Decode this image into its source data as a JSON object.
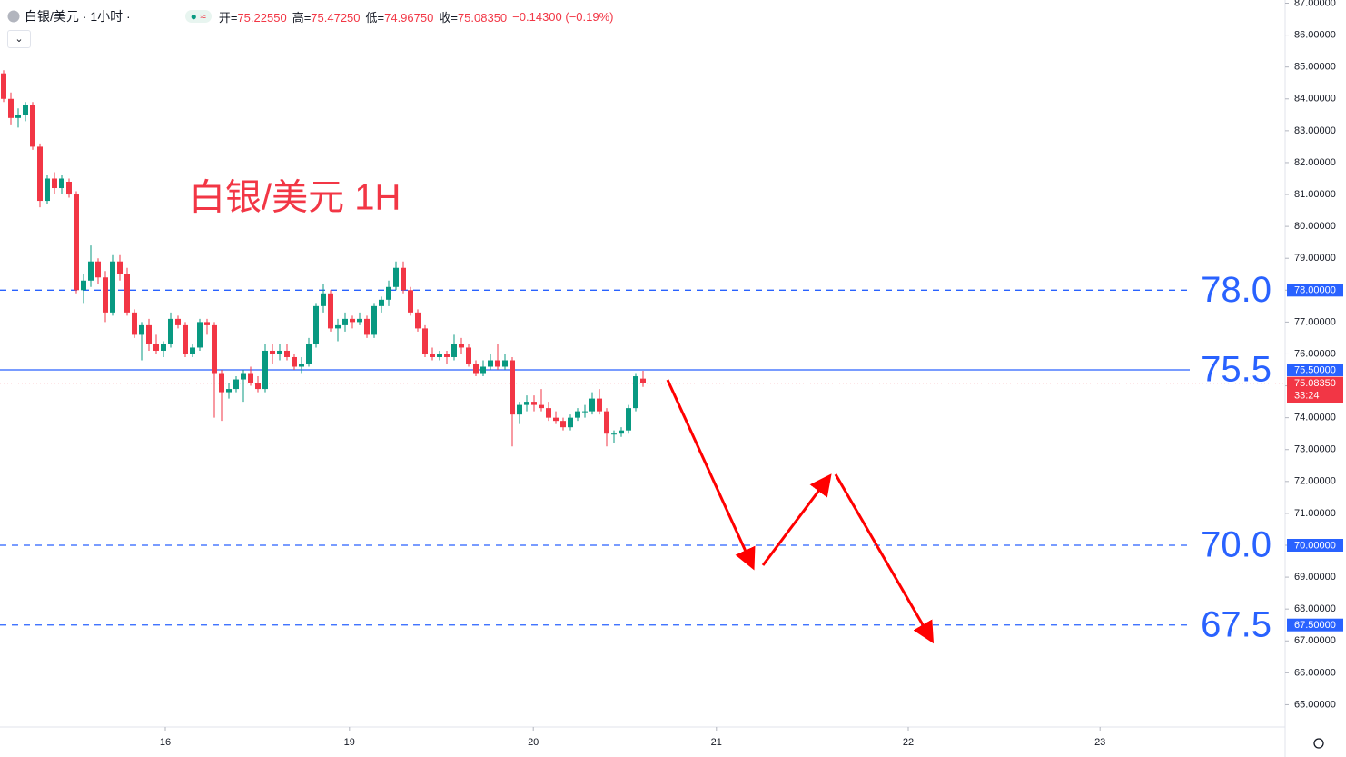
{
  "chart_data": {
    "type": "candlestick",
    "symbol": "白银/美元 · 1小时 ·",
    "ohlc_header": [
      {
        "label": "开=",
        "value": "75.22550"
      },
      {
        "label": "高=",
        "value": "75.47250"
      },
      {
        "label": "低=",
        "value": "74.96750"
      },
      {
        "label": "收=",
        "value": "75.08350"
      }
    ],
    "change": "−0.14300 (−0.19%)",
    "title": "白银/美元 1H",
    "up_color": "#089981",
    "down_color": "#f23645",
    "level_color": "#2962ff",
    "candles": [
      [
        84.8,
        84.9,
        83.9,
        84.0
      ],
      [
        84.0,
        84.2,
        83.2,
        83.4
      ],
      [
        83.4,
        83.7,
        83.1,
        83.5
      ],
      [
        83.5,
        83.9,
        83.3,
        83.8
      ],
      [
        83.8,
        83.9,
        82.4,
        82.5
      ],
      [
        82.5,
        82.6,
        80.6,
        80.8
      ],
      [
        80.8,
        81.6,
        80.7,
        81.5
      ],
      [
        81.5,
        81.7,
        81.0,
        81.2
      ],
      [
        81.2,
        81.6,
        81.0,
        81.5
      ],
      [
        81.4,
        81.5,
        80.9,
        81.0
      ],
      [
        81.0,
        81.1,
        77.9,
        78.0
      ],
      [
        78.0,
        78.5,
        77.6,
        78.3
      ],
      [
        78.3,
        79.4,
        78.1,
        78.9
      ],
      [
        78.9,
        79.0,
        78.2,
        78.4
      ],
      [
        78.4,
        78.6,
        77.0,
        77.3
      ],
      [
        77.3,
        79.1,
        77.2,
        78.9
      ],
      [
        78.9,
        79.1,
        78.3,
        78.5
      ],
      [
        78.5,
        78.7,
        77.2,
        77.3
      ],
      [
        77.3,
        77.4,
        76.5,
        76.6
      ],
      [
        76.6,
        77.0,
        75.8,
        76.9
      ],
      [
        76.9,
        77.1,
        76.1,
        76.3
      ],
      [
        76.3,
        76.6,
        76.0,
        76.1
      ],
      [
        76.1,
        76.4,
        75.9,
        76.3
      ],
      [
        76.3,
        77.3,
        76.2,
        77.1
      ],
      [
        77.1,
        77.2,
        76.8,
        76.9
      ],
      [
        76.9,
        77.0,
        75.9,
        76.0
      ],
      [
        76.0,
        76.3,
        75.9,
        76.2
      ],
      [
        76.2,
        77.1,
        76.1,
        77.0
      ],
      [
        77.0,
        77.1,
        76.6,
        76.9
      ],
      [
        76.9,
        77.0,
        74.0,
        75.4
      ],
      [
        75.4,
        75.5,
        73.9,
        74.8
      ],
      [
        74.8,
        75.1,
        74.6,
        74.9
      ],
      [
        74.9,
        75.3,
        74.8,
        75.2
      ],
      [
        75.2,
        75.5,
        74.5,
        75.4
      ],
      [
        75.4,
        75.6,
        75.0,
        75.1
      ],
      [
        75.1,
        75.3,
        74.8,
        74.9
      ],
      [
        74.9,
        76.3,
        74.8,
        76.1
      ],
      [
        76.1,
        76.3,
        75.7,
        76.0
      ],
      [
        76.0,
        76.3,
        75.8,
        76.1
      ],
      [
        76.1,
        76.3,
        75.8,
        75.9
      ],
      [
        75.9,
        76.0,
        75.5,
        75.6
      ],
      [
        75.6,
        75.9,
        75.4,
        75.7
      ],
      [
        75.7,
        76.5,
        75.6,
        76.3
      ],
      [
        76.3,
        77.6,
        76.2,
        77.5
      ],
      [
        77.5,
        78.2,
        77.3,
        77.9
      ],
      [
        77.9,
        78.0,
        76.7,
        76.8
      ],
      [
        76.8,
        77.1,
        76.4,
        76.9
      ],
      [
        76.9,
        77.3,
        76.7,
        77.1
      ],
      [
        77.1,
        77.2,
        76.8,
        77.0
      ],
      [
        77.0,
        77.3,
        76.9,
        77.1
      ],
      [
        77.1,
        77.2,
        76.5,
        76.6
      ],
      [
        76.6,
        77.6,
        76.5,
        77.5
      ],
      [
        77.5,
        77.8,
        77.3,
        77.7
      ],
      [
        77.7,
        78.3,
        77.5,
        78.1
      ],
      [
        78.1,
        78.9,
        78.0,
        78.7
      ],
      [
        78.7,
        78.9,
        77.9,
        78.0
      ],
      [
        78.0,
        78.1,
        77.2,
        77.3
      ],
      [
        77.3,
        77.4,
        76.7,
        76.8
      ],
      [
        76.8,
        76.9,
        75.9,
        76.0
      ],
      [
        76.0,
        76.2,
        75.8,
        75.9
      ],
      [
        75.9,
        76.1,
        75.8,
        76.0
      ],
      [
        76.0,
        76.1,
        75.7,
        75.9
      ],
      [
        75.9,
        76.6,
        75.8,
        76.3
      ],
      [
        76.3,
        76.5,
        76.0,
        76.2
      ],
      [
        76.2,
        76.3,
        75.6,
        75.7
      ],
      [
        75.7,
        75.8,
        75.3,
        75.4
      ],
      [
        75.4,
        75.8,
        75.3,
        75.6
      ],
      [
        75.6,
        76.0,
        75.5,
        75.8
      ],
      [
        75.8,
        76.3,
        75.5,
        75.6
      ],
      [
        75.6,
        76.0,
        75.5,
        75.8
      ],
      [
        75.8,
        75.9,
        73.1,
        74.1
      ],
      [
        74.1,
        74.5,
        73.8,
        74.4
      ],
      [
        74.4,
        74.7,
        74.2,
        74.5
      ],
      [
        74.5,
        74.7,
        74.2,
        74.4
      ],
      [
        74.4,
        74.9,
        74.2,
        74.3
      ],
      [
        74.3,
        74.5,
        73.9,
        74.0
      ],
      [
        74.0,
        74.2,
        73.8,
        73.9
      ],
      [
        73.9,
        74.0,
        73.6,
        73.7
      ],
      [
        73.7,
        74.1,
        73.6,
        74.0
      ],
      [
        74.0,
        74.3,
        73.9,
        74.2
      ],
      [
        74.2,
        74.4,
        74.0,
        74.2
      ],
      [
        74.2,
        74.8,
        74.1,
        74.6
      ],
      [
        74.6,
        74.9,
        74.1,
        74.2
      ],
      [
        74.2,
        74.3,
        73.1,
        73.5
      ],
      [
        73.5,
        73.6,
        73.2,
        73.5
      ],
      [
        73.5,
        73.7,
        73.4,
        73.6
      ],
      [
        73.6,
        74.4,
        73.5,
        74.3
      ],
      [
        74.3,
        75.4,
        74.2,
        75.3
      ],
      [
        75.2255,
        75.4725,
        74.9675,
        75.0835
      ]
    ],
    "xlim": [
      -0.5,
      163.25
    ],
    "xticks": [
      {
        "value": 22.25,
        "label": "16"
      },
      {
        "value": 47.6,
        "label": "19"
      },
      {
        "value": 72.9,
        "label": "20"
      },
      {
        "value": 98.1,
        "label": "21"
      },
      {
        "value": 124.5,
        "label": "22"
      },
      {
        "value": 150.9,
        "label": "23"
      }
    ],
    "ylim": [
      64.3,
      87.1
    ],
    "yticks": [
      {
        "value": 65,
        "label": "65.00000"
      },
      {
        "value": 66,
        "label": "66.00000"
      },
      {
        "value": 67,
        "label": "67.00000"
      },
      {
        "value": 68,
        "label": "68.00000"
      },
      {
        "value": 69,
        "label": "69.00000"
      },
      {
        "value": 70,
        "label": "70.00000"
      },
      {
        "value": 71,
        "label": "71.00000"
      },
      {
        "value": 72,
        "label": "72.00000"
      },
      {
        "value": 73,
        "label": "73.00000"
      },
      {
        "value": 74,
        "label": "74.00000"
      },
      {
        "value": 75,
        "label": "75.00000"
      },
      {
        "value": 76,
        "label": "76.00000"
      },
      {
        "value": 77,
        "label": "77.00000"
      },
      {
        "value": 78,
        "label": "78.00000"
      },
      {
        "value": 79,
        "label": "79.00000"
      },
      {
        "value": 80,
        "label": "80.00000"
      },
      {
        "value": 81,
        "label": "81.00000"
      },
      {
        "value": 82,
        "label": "82.00000"
      },
      {
        "value": 83,
        "label": "83.00000"
      },
      {
        "value": 84,
        "label": "84.00000"
      },
      {
        "value": 85,
        "label": "85.00000"
      },
      {
        "value": 86,
        "label": "86.00000"
      },
      {
        "value": 87,
        "label": "87.00000"
      }
    ],
    "levels": [
      {
        "value": 78,
        "label": "78.0",
        "badge": "78.00000",
        "dashed": true
      },
      {
        "value": 75.5,
        "label": "75.5",
        "badge": "75.50000",
        "dashed": false
      },
      {
        "value": 70,
        "label": "70.0",
        "badge": "70.00000",
        "dashed": true
      },
      {
        "value": 67.5,
        "label": "67.5",
        "badge": "67.50000",
        "dashed": true
      }
    ],
    "last_price": {
      "value": 75.0835,
      "label": "75.08350"
    },
    "countdown": "33:24"
  }
}
